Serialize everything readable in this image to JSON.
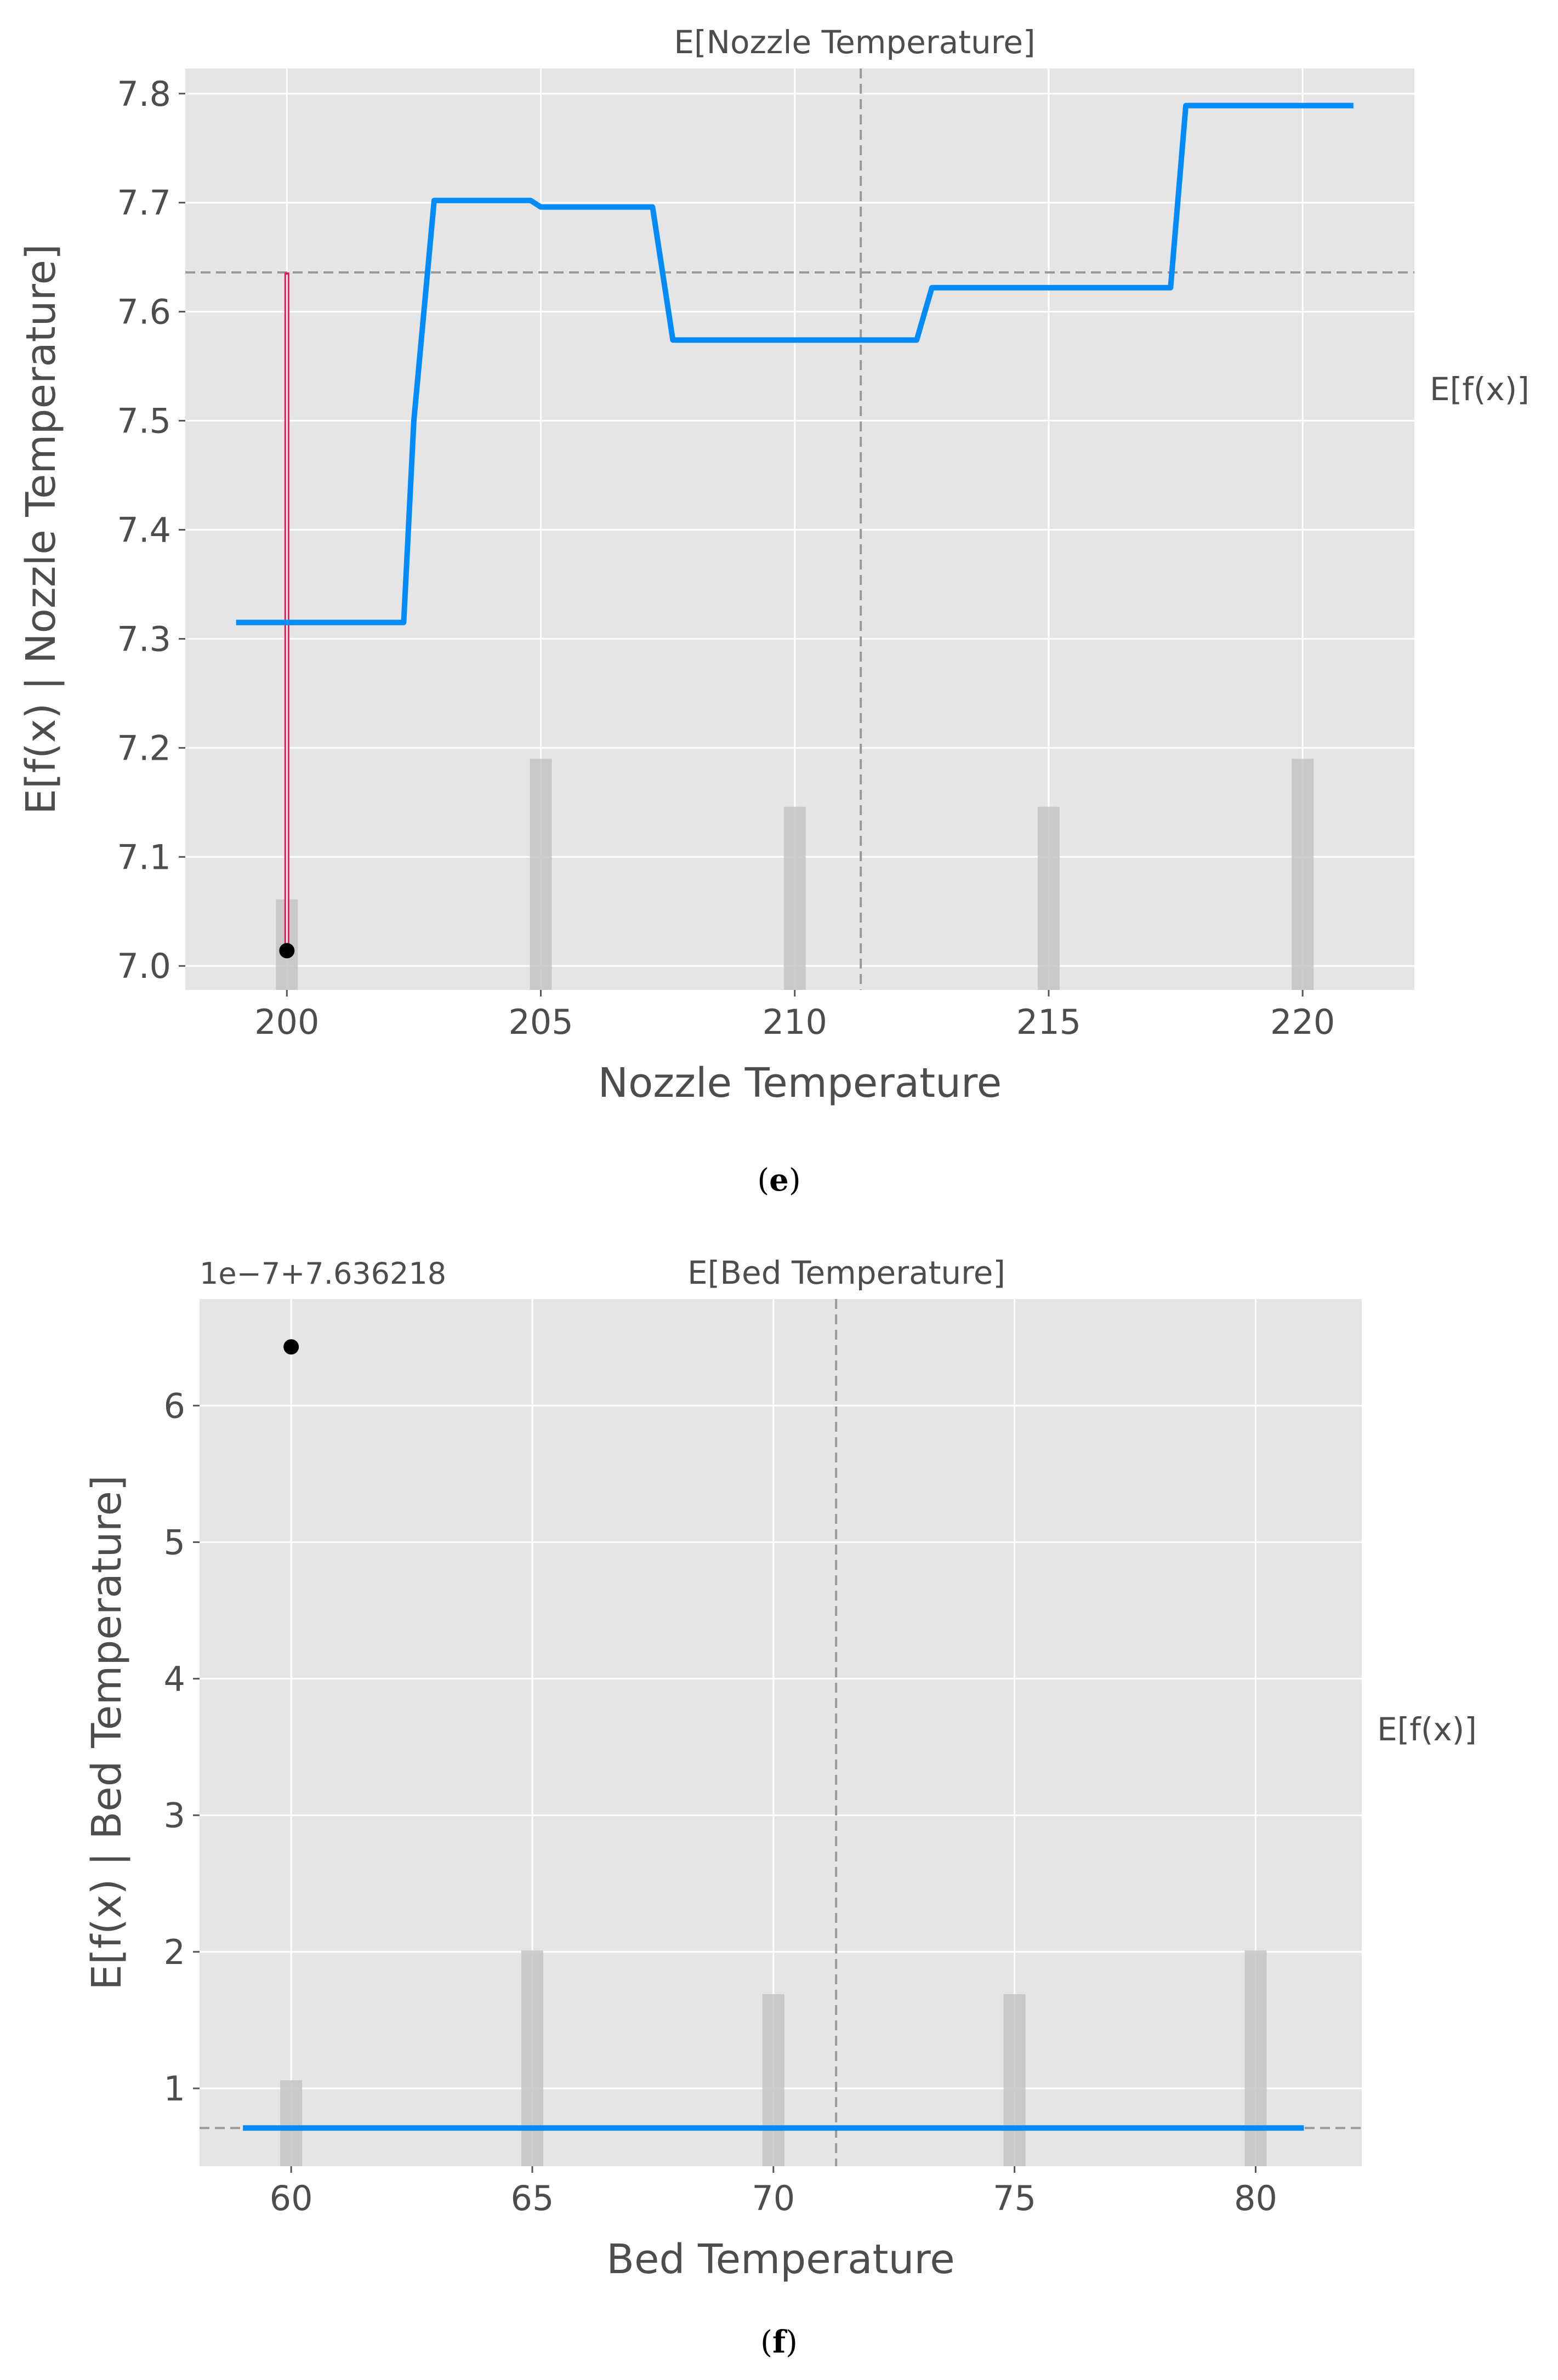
{
  "chart_data": [
    {
      "type": "line",
      "title": "E[Nozzle Temperature]",
      "xlabel": "Nozzle Temperature",
      "ylabel": "E[f(x) | Nozzle Temperature]",
      "expected_label": "E[f(x)]",
      "caption": "e",
      "xlim": [
        198,
        222.2
      ],
      "ylim": [
        6.978,
        7.823
      ],
      "xticks": [
        200,
        205,
        210,
        215,
        220
      ],
      "xtick_labels": [
        "200",
        "205",
        "210",
        "215",
        "220"
      ],
      "yticks": [
        7.0,
        7.1,
        7.2,
        7.3,
        7.4,
        7.5,
        7.6,
        7.7,
        7.8
      ],
      "ytick_labels": [
        "7.0",
        "7.1",
        "7.2",
        "7.3",
        "7.4",
        "7.5",
        "7.6",
        "7.7",
        "7.8"
      ],
      "grid": true,
      "expected_value": 7.636,
      "feature_mean": 211.3,
      "series": [
        {
          "x": [
            199,
            202.3,
            202.5,
            202.9,
            204.8,
            205.0,
            207.2,
            207.6,
            212.4,
            212.7,
            217.4,
            217.7,
            221
          ],
          "y": [
            7.315,
            7.315,
            7.5,
            7.702,
            7.702,
            7.696,
            7.696,
            7.574,
            7.574,
            7.622,
            7.622,
            7.789,
            7.789
          ]
        }
      ],
      "histogram": [
        {
          "x": 200,
          "height": 7.061
        },
        {
          "x": 205,
          "height": 7.19
        },
        {
          "x": 210,
          "height": 7.146
        },
        {
          "x": 215,
          "height": 7.146
        },
        {
          "x": 220,
          "height": 7.19
        }
      ],
      "instance": {
        "x": 200,
        "y": 7.014
      }
    },
    {
      "type": "line",
      "title": "E[Bed Temperature]",
      "xlabel": "Bed Temperature",
      "ylabel": "E[f(x) | Bed Temperature]",
      "expected_label": "E[f(x)]",
      "offset_label": "1e−7+7.636218",
      "caption": "f",
      "xlim": [
        58.1,
        82.2
      ],
      "ylim": [
        0.43,
        6.78
      ],
      "xticks": [
        60,
        65,
        70,
        75,
        80
      ],
      "xtick_labels": [
        "60",
        "65",
        "70",
        "75",
        "80"
      ],
      "yticks": [
        1,
        2,
        3,
        4,
        5,
        6
      ],
      "ytick_labels": [
        "1",
        "2",
        "3",
        "4",
        "5",
        "6"
      ],
      "grid": true,
      "expected_value": 0.71,
      "feature_mean": 71.3,
      "series": [
        {
          "x": [
            59,
            81
          ],
          "y": [
            0.71,
            0.71
          ]
        }
      ],
      "histogram": [
        {
          "x": 60,
          "height": 1.06
        },
        {
          "x": 65,
          "height": 2.01
        },
        {
          "x": 70,
          "height": 1.69
        },
        {
          "x": 75,
          "height": 1.69
        },
        {
          "x": 80,
          "height": 2.01
        }
      ],
      "instance": {
        "x": 60,
        "y": 6.43
      }
    }
  ]
}
